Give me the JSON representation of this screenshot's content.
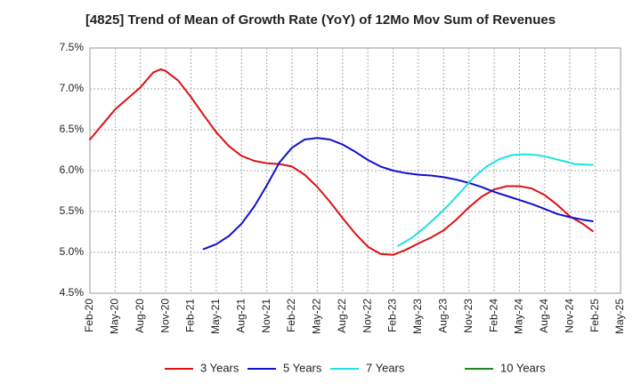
{
  "chart_data": {
    "type": "line",
    "title": "[4825]  Trend of Mean of Growth Rate (YoY) of 12Mo Mov Sum of Revenues",
    "xlabel": "",
    "ylabel": "",
    "ylim": [
      4.5,
      7.5
    ],
    "yticks": [
      "7.5%",
      "7.0%",
      "6.5%",
      "6.0%",
      "5.5%",
      "5.0%",
      "4.5%"
    ],
    "ytick_values": [
      7.5,
      7.0,
      6.5,
      6.0,
      5.5,
      5.0,
      4.5
    ],
    "xtick_labels": [
      "Feb-20",
      "May-20",
      "Aug-20",
      "Nov-20",
      "Feb-21",
      "May-21",
      "Aug-21",
      "Nov-21",
      "Feb-22",
      "May-22",
      "Aug-22",
      "Nov-22",
      "Feb-23",
      "May-23",
      "Aug-23",
      "Nov-23",
      "Feb-24",
      "May-24",
      "Aug-24",
      "Nov-24",
      "Feb-25",
      "May-25"
    ],
    "grid": true,
    "legend_position": "bottom",
    "series": [
      {
        "name": "3 Years",
        "color": "#dd1111",
        "points": [
          [
            0,
            6.38
          ],
          [
            1,
            6.75
          ],
          [
            2,
            7.02
          ],
          [
            2.5,
            7.2
          ],
          [
            2.8,
            7.24
          ],
          [
            3,
            7.22
          ],
          [
            3.5,
            7.1
          ],
          [
            4,
            6.9
          ],
          [
            4.5,
            6.68
          ],
          [
            5,
            6.47
          ],
          [
            5.5,
            6.3
          ],
          [
            6,
            6.18
          ],
          [
            6.5,
            6.12
          ],
          [
            7,
            6.09
          ],
          [
            7.5,
            6.08
          ],
          [
            8,
            6.05
          ],
          [
            8.5,
            5.95
          ],
          [
            9,
            5.8
          ],
          [
            9.5,
            5.62
          ],
          [
            10,
            5.42
          ],
          [
            10.5,
            5.23
          ],
          [
            11,
            5.07
          ],
          [
            11.5,
            4.98
          ],
          [
            12,
            4.97
          ],
          [
            12.5,
            5.03
          ],
          [
            13,
            5.11
          ],
          [
            13.5,
            5.18
          ],
          [
            14,
            5.27
          ],
          [
            14.5,
            5.4
          ],
          [
            15,
            5.55
          ],
          [
            15.5,
            5.68
          ],
          [
            16,
            5.77
          ],
          [
            16.5,
            5.81
          ],
          [
            17,
            5.81
          ],
          [
            17.5,
            5.78
          ],
          [
            18,
            5.7
          ],
          [
            18.5,
            5.58
          ],
          [
            19,
            5.44
          ],
          [
            19.5,
            5.35
          ],
          [
            19.9,
            5.26
          ]
        ]
      },
      {
        "name": "5 Years",
        "color": "#1111cc",
        "points": [
          [
            4.5,
            5.04
          ],
          [
            5,
            5.1
          ],
          [
            5.5,
            5.2
          ],
          [
            6,
            5.35
          ],
          [
            6.5,
            5.56
          ],
          [
            7,
            5.82
          ],
          [
            7.5,
            6.1
          ],
          [
            8,
            6.28
          ],
          [
            8.5,
            6.38
          ],
          [
            9,
            6.4
          ],
          [
            9.5,
            6.38
          ],
          [
            10,
            6.32
          ],
          [
            10.5,
            6.23
          ],
          [
            11,
            6.13
          ],
          [
            11.5,
            6.05
          ],
          [
            12,
            6.0
          ],
          [
            12.5,
            5.97
          ],
          [
            13,
            5.95
          ],
          [
            13.5,
            5.94
          ],
          [
            14,
            5.92
          ],
          [
            14.5,
            5.89
          ],
          [
            15,
            5.85
          ],
          [
            15.5,
            5.8
          ],
          [
            16,
            5.74
          ],
          [
            16.5,
            5.69
          ],
          [
            17,
            5.64
          ],
          [
            17.5,
            5.59
          ],
          [
            18,
            5.53
          ],
          [
            18.5,
            5.47
          ],
          [
            19,
            5.43
          ],
          [
            19.5,
            5.4
          ],
          [
            19.9,
            5.38
          ]
        ]
      },
      {
        "name": "7 Years",
        "color": "#22e0e6",
        "points": [
          [
            12.2,
            5.08
          ],
          [
            12.7,
            5.17
          ],
          [
            13.2,
            5.29
          ],
          [
            13.7,
            5.43
          ],
          [
            14.2,
            5.58
          ],
          [
            14.7,
            5.75
          ],
          [
            15.2,
            5.92
          ],
          [
            15.7,
            6.05
          ],
          [
            16.2,
            6.14
          ],
          [
            16.7,
            6.19
          ],
          [
            17.2,
            6.2
          ],
          [
            17.7,
            6.19
          ],
          [
            18.2,
            6.16
          ],
          [
            18.7,
            6.12
          ],
          [
            19.2,
            6.08
          ],
          [
            19.9,
            6.07
          ]
        ]
      },
      {
        "name": "10 Years",
        "color": "#228822",
        "points": []
      }
    ]
  }
}
